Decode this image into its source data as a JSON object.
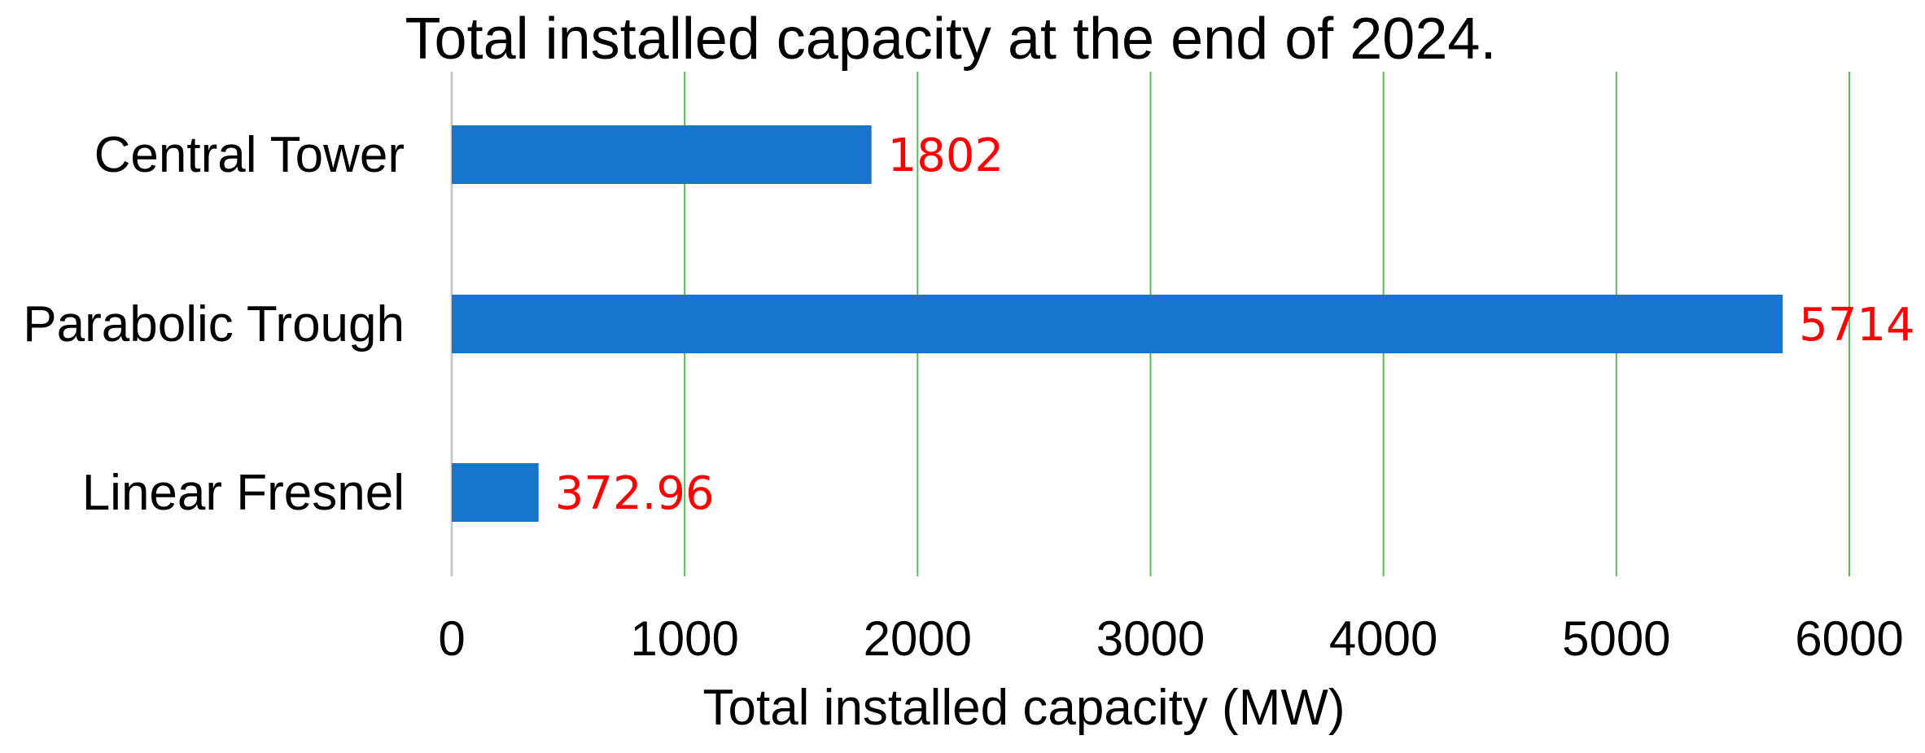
{
  "chart_data": {
    "type": "bar",
    "orientation": "horizontal",
    "title": "Total installed capacity at the end of 2024.",
    "xlabel": "Total installed capacity (MW)",
    "ylabel": "",
    "categories": [
      "Central Tower",
      "Parabolic Trough",
      "Linear Fresnel"
    ],
    "values": [
      1802,
      5714,
      372.96
    ],
    "data_labels": [
      "1802",
      "5714",
      "372.96"
    ],
    "xlim": [
      0,
      6000
    ],
    "xticks": [
      0,
      1000,
      2000,
      3000,
      4000,
      5000,
      6000
    ],
    "xtick_labels": [
      "0",
      "1000",
      "2000",
      "3000",
      "4000",
      "5000",
      "6000"
    ],
    "grid": "vertical",
    "legend": "none",
    "colors": {
      "bar": "#1874CD",
      "data_label": "#FF0000",
      "gridline": "#5CB85C",
      "axis": "#C8C8C8"
    }
  }
}
